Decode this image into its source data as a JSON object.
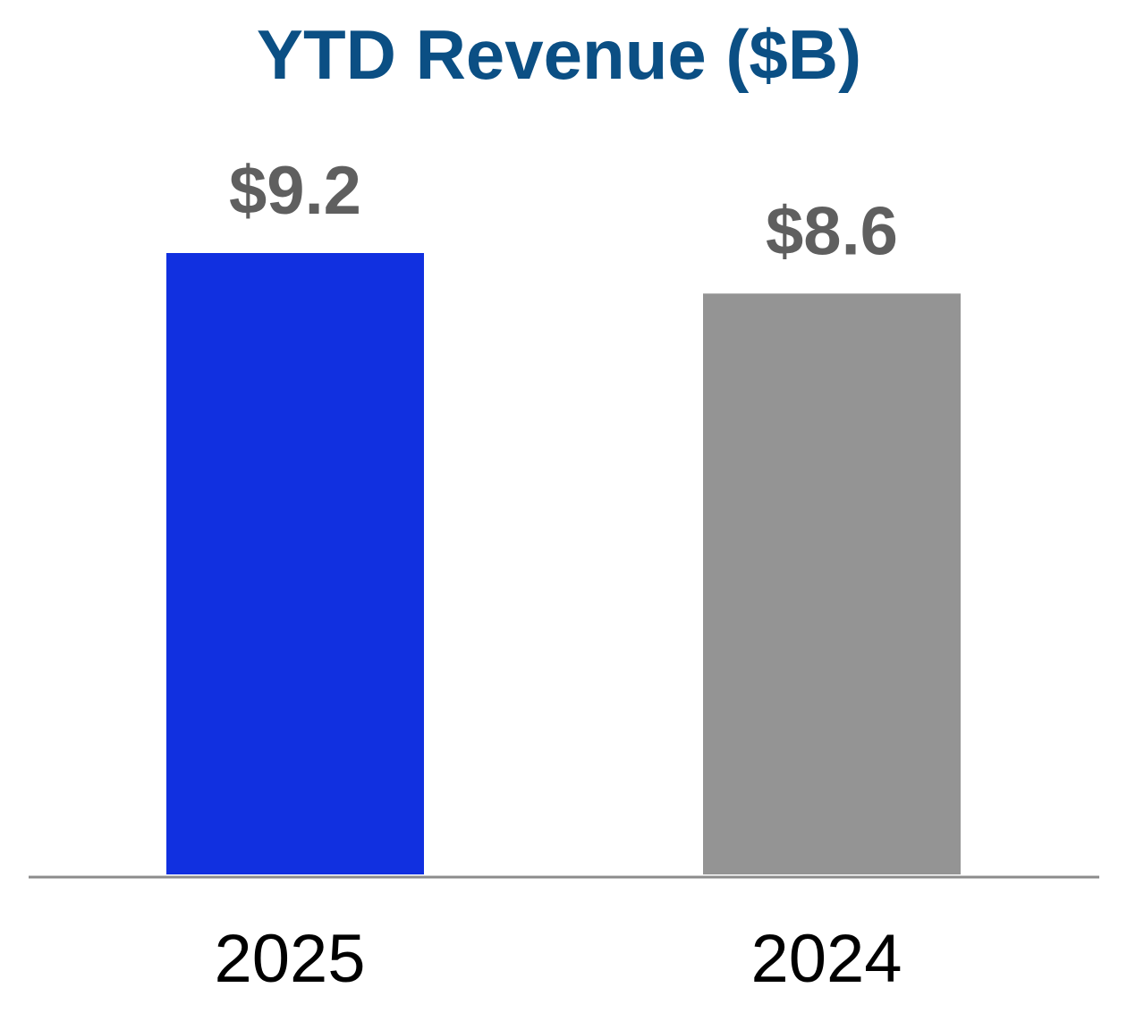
{
  "chart_data": {
    "type": "bar",
    "title": "YTD Revenue ($B)",
    "categories": [
      "2025",
      "2024"
    ],
    "values": [
      9.2,
      8.6
    ],
    "value_labels": [
      "$9.2",
      "$8.6"
    ],
    "bar_colors": [
      "#1130e0",
      "#949494"
    ],
    "xlabel": "",
    "ylabel": "",
    "ylim": [
      0,
      9.2
    ],
    "grid": false,
    "legend": "none"
  },
  "colors": {
    "title": "#0b4f84",
    "value_label": "#5f5f5f",
    "category_label": "#000000",
    "baseline": "#8c8c8c"
  }
}
